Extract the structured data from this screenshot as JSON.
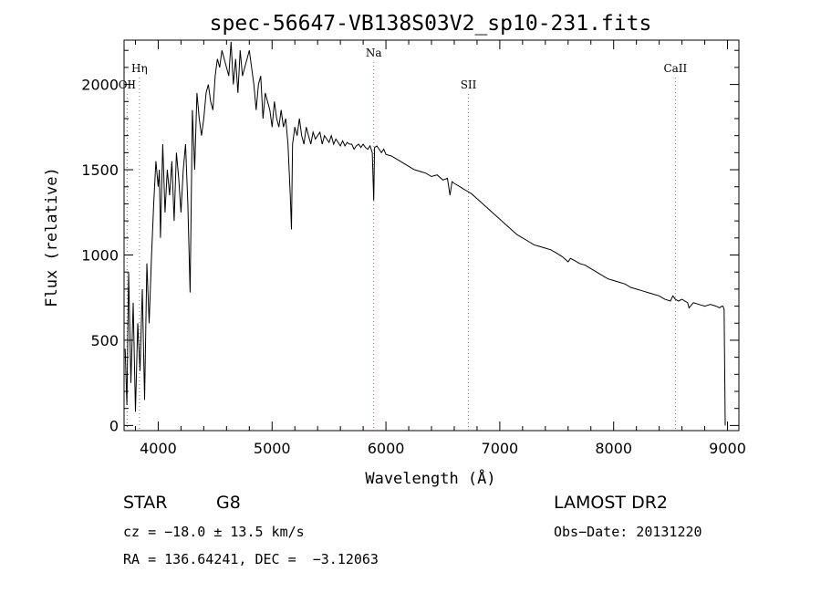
{
  "chart_data": {
    "type": "line",
    "title": "spec-56647-VB138S03V2_sp10-231.fits",
    "xlabel": "Wavelength (Å)",
    "ylabel": "Flux (relative)",
    "xlim": [
      3700,
      9100
    ],
    "ylim": [
      -30,
      2260
    ],
    "xticks": [
      4000,
      5000,
      6000,
      7000,
      8000,
      9000
    ],
    "yticks": [
      0,
      500,
      1000,
      1500,
      2000
    ],
    "grid": false,
    "lines": [
      {
        "label": "Hη",
        "x": 3835,
        "label_level": "upper"
      },
      {
        "label": "OII",
        "x": 3727,
        "label_level": "lower"
      },
      {
        "label": "Na",
        "x": 5893,
        "label_level": "top"
      },
      {
        "label": "SII",
        "x": 6725,
        "label_level": "lower"
      },
      {
        "label": "CaII",
        "x": 8542,
        "label_level": "upper"
      }
    ],
    "series": [
      {
        "x": [
          3710,
          3725,
          3740,
          3760,
          3780,
          3800,
          3820,
          3840,
          3860,
          3880,
          3900,
          3920,
          3940,
          3960,
          3980,
          4000,
          4010,
          4020,
          4040,
          4060,
          4080,
          4100,
          4120,
          4140,
          4160,
          4180,
          4200,
          4220,
          4240,
          4260,
          4280,
          4300,
          4320,
          4340,
          4360,
          4380,
          4400,
          4420,
          4440,
          4460,
          4480,
          4500,
          4520,
          4540,
          4560,
          4580,
          4600,
          4620,
          4640,
          4660,
          4680,
          4700,
          4720,
          4740,
          4760,
          4780,
          4800,
          4820,
          4840,
          4860,
          4880,
          4900,
          4920,
          4940,
          4960,
          4980,
          5000,
          5020,
          5040,
          5060,
          5080,
          5100,
          5120,
          5140,
          5160,
          5170,
          5180,
          5200,
          5220,
          5240,
          5260,
          5280,
          5300,
          5320,
          5340,
          5360,
          5380,
          5400,
          5420,
          5440,
          5460,
          5480,
          5500,
          5520,
          5540,
          5560,
          5580,
          5600,
          5620,
          5640,
          5660,
          5680,
          5700,
          5720,
          5740,
          5760,
          5780,
          5800,
          5820,
          5840,
          5860,
          5880,
          5893,
          5900,
          5920,
          5940,
          5960,
          5980,
          6000,
          6050,
          6100,
          6150,
          6200,
          6250,
          6300,
          6350,
          6400,
          6450,
          6500,
          6540,
          6563,
          6580,
          6600,
          6650,
          6700,
          6750,
          6800,
          6850,
          6900,
          6950,
          7000,
          7050,
          7100,
          7150,
          7200,
          7250,
          7300,
          7350,
          7400,
          7450,
          7500,
          7550,
          7600,
          7620,
          7650,
          7700,
          7750,
          7800,
          7850,
          7900,
          7950,
          8000,
          8050,
          8100,
          8150,
          8200,
          8250,
          8300,
          8350,
          8400,
          8450,
          8498,
          8520,
          8542,
          8570,
          8600,
          8650,
          8662,
          8700,
          8750,
          8800,
          8850,
          8900,
          8930,
          8950,
          8960,
          8970,
          8980
        ],
        "y": [
          450,
          120,
          900,
          250,
          720,
          80,
          600,
          320,
          800,
          150,
          950,
          600,
          980,
          1300,
          1550,
          1400,
          1500,
          1100,
          1650,
          1250,
          1500,
          1350,
          1550,
          1200,
          1600,
          1450,
          1250,
          1500,
          1650,
          1300,
          780,
          1850,
          1500,
          1950,
          1800,
          1700,
          1800,
          1950,
          2000,
          1900,
          1850,
          2050,
          2150,
          2100,
          2200,
          2150,
          2100,
          2050,
          2250,
          2000,
          2150,
          1950,
          2200,
          2050,
          2100,
          2150,
          2200,
          2100,
          2000,
          1850,
          2000,
          2050,
          1800,
          1950,
          1900,
          1850,
          1750,
          1900,
          1800,
          1750,
          1850,
          1750,
          1800,
          1650,
          1350,
          1150,
          1650,
          1750,
          1700,
          1800,
          1700,
          1650,
          1750,
          1700,
          1650,
          1720,
          1680,
          1700,
          1720,
          1650,
          1700,
          1680,
          1660,
          1700,
          1650,
          1680,
          1660,
          1640,
          1670,
          1640,
          1660,
          1650,
          1650,
          1620,
          1640,
          1650,
          1630,
          1650,
          1630,
          1620,
          1640,
          1600,
          1320,
          1630,
          1640,
          1620,
          1600,
          1620,
          1590,
          1580,
          1560,
          1540,
          1520,
          1500,
          1490,
          1480,
          1460,
          1470,
          1440,
          1450,
          1350,
          1430,
          1420,
          1400,
          1380,
          1360,
          1330,
          1300,
          1270,
          1240,
          1210,
          1180,
          1150,
          1120,
          1100,
          1080,
          1060,
          1050,
          1040,
          1030,
          1010,
          990,
          960,
          980,
          970,
          950,
          940,
          920,
          900,
          880,
          860,
          850,
          840,
          830,
          810,
          800,
          790,
          780,
          770,
          760,
          740,
          730,
          760,
          740,
          730,
          740,
          720,
          690,
          720,
          710,
          700,
          710,
          700,
          690,
          700,
          700,
          680,
          0
        ]
      }
    ]
  },
  "footer": {
    "object_class": "STAR",
    "subclass": "G8",
    "cz": "cz = −18.0 ± 13.5 km/s",
    "coords": "RA = 136.64241, DEC =  −3.12063",
    "survey": "LAMOST DR2",
    "obs_date": "Obs−Date: 20131220"
  },
  "colors": {
    "line_marker": "#d9534f",
    "spectrum": "#000000"
  }
}
